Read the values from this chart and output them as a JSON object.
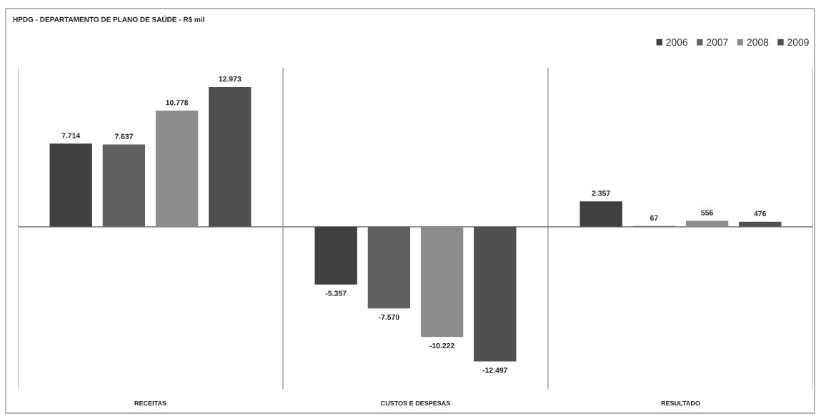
{
  "chart_data": {
    "type": "bar",
    "title": "HPDG - DEPARTAMENTO DE PLANO DE SAÚDE - R$ mil",
    "categories": [
      "RECEITAS",
      "CUSTOS E DESPESAS",
      "RESULTADO"
    ],
    "series": [
      {
        "name": "2006",
        "color": "#404040",
        "values": [
          7714,
          -5357,
          2357
        ],
        "value_labels": [
          "7.714",
          "-5.357",
          "2.357"
        ]
      },
      {
        "name": "2007",
        "color": "#606060",
        "values": [
          7637,
          -7570,
          67
        ],
        "value_labels": [
          "7.637",
          "-7.570",
          "67"
        ]
      },
      {
        "name": "2008",
        "color": "#8c8c8c",
        "values": [
          10778,
          -10222,
          556
        ],
        "value_labels": [
          "10.778",
          "-10.222",
          "556"
        ]
      },
      {
        "name": "2009",
        "color": "#505050",
        "values": [
          12973,
          -12497,
          476
        ],
        "value_labels": [
          "12.973",
          "-12.497",
          "476"
        ]
      }
    ],
    "grid": "x",
    "legend": "top right",
    "tick_labels": "x"
  }
}
